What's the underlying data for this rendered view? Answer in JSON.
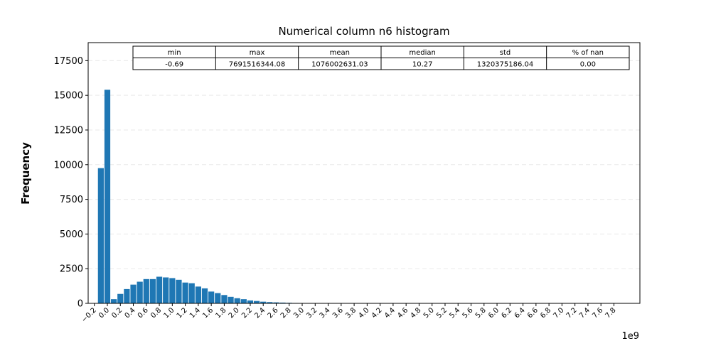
{
  "chart_data": {
    "type": "bar",
    "title": "Numerical column n6 histogram",
    "xlabel": "",
    "ylabel": "Frequency",
    "x_offset_label": "1e9",
    "grid": "horizontal dashed",
    "xlim": [
      -0.2955,
      8.2
    ],
    "ylim": [
      0,
      18800
    ],
    "yticks": [
      0,
      2500,
      5000,
      7500,
      10000,
      12500,
      15000,
      17500
    ],
    "ytick_labels": [
      "0",
      "2500",
      "5000",
      "7500",
      "10000",
      "12500",
      "15000",
      "17500"
    ],
    "xticks": [
      -0.2,
      0.0,
      0.2,
      0.4,
      0.6,
      0.8,
      1.0,
      1.2,
      1.4,
      1.6,
      1.8,
      2.0,
      2.2,
      2.4,
      2.6,
      2.8,
      3.0,
      3.2,
      3.4,
      3.6,
      3.8,
      4.0,
      4.2,
      4.4,
      4.6,
      4.8,
      5.0,
      5.2,
      5.4,
      5.6,
      5.8,
      6.0,
      6.2,
      6.4,
      6.6,
      6.8,
      7.0,
      7.2,
      7.4,
      7.6,
      7.8
    ],
    "xtick_labels": [
      "−0.2",
      "0.0",
      "0.2",
      "0.4",
      "0.6",
      "0.8",
      "1.0",
      "1.2",
      "1.4",
      "1.6",
      "1.8",
      "2.0",
      "2.2",
      "2.4",
      "2.6",
      "2.8",
      "3.0",
      "3.2",
      "3.4",
      "3.6",
      "3.8",
      "4.0",
      "4.2",
      "4.4",
      "4.6",
      "4.8",
      "5.0",
      "5.2",
      "5.4",
      "5.6",
      "5.8",
      "6.0",
      "6.2",
      "6.4",
      "6.6",
      "6.8",
      "7.0",
      "7.2",
      "7.4",
      "7.6",
      "7.8"
    ],
    "bin_start": -0.1,
    "bin_width": 0.1,
    "bar_width": 0.09,
    "bar_color": "#1f77b4",
    "values": [
      9750,
      15400,
      300,
      680,
      1030,
      1350,
      1560,
      1750,
      1750,
      1920,
      1870,
      1820,
      1700,
      1500,
      1450,
      1210,
      1080,
      850,
      740,
      600,
      470,
      370,
      300,
      210,
      170,
      120,
      90,
      70,
      55,
      40,
      28,
      20,
      15,
      10,
      7,
      5,
      4,
      3,
      2,
      2,
      1,
      1,
      1,
      1,
      1,
      0,
      0,
      0,
      0,
      0,
      0,
      0,
      0,
      0,
      0,
      0,
      0,
      0,
      0,
      0,
      0,
      0,
      0,
      0,
      0,
      0,
      0,
      0,
      0,
      0,
      0,
      0,
      0,
      0,
      0,
      0,
      0,
      0,
      0
    ]
  },
  "stats_table": {
    "headers": [
      "min",
      "max",
      "mean",
      "median",
      "std",
      "% of nan"
    ],
    "values": [
      "-0.69",
      "7691516344.08",
      "1076002631.03",
      "10.27",
      "1320375186.04",
      "0.00"
    ]
  }
}
